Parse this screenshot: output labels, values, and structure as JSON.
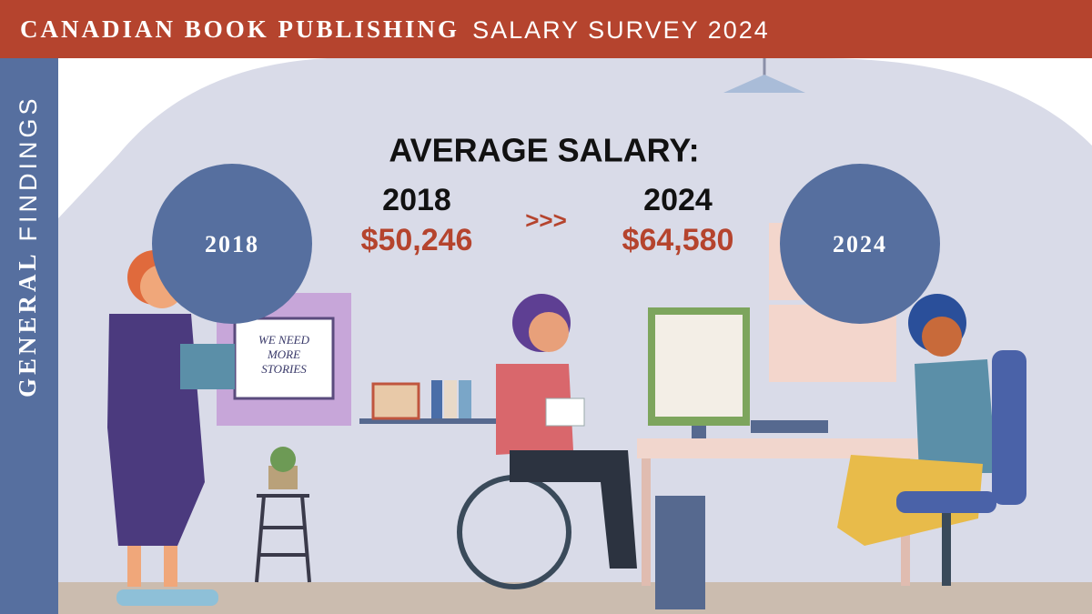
{
  "header": {
    "title_bold": "CANADIAN BOOK PUBLISHING",
    "title_light": "SALARY SURVEY 2024"
  },
  "sidebar": {
    "bold": "GENERAL",
    "light": "FINDINGS"
  },
  "heading": "AVERAGE SALARY:",
  "comparison": {
    "left": {
      "year": "2018",
      "salary": "$50,246"
    },
    "arrow": ">>>",
    "right": {
      "year": "2024",
      "salary": "$64,580"
    }
  },
  "circles": [
    "2018",
    "2024"
  ],
  "sign": [
    "WE NEED",
    "MORE",
    "STORIES"
  ]
}
